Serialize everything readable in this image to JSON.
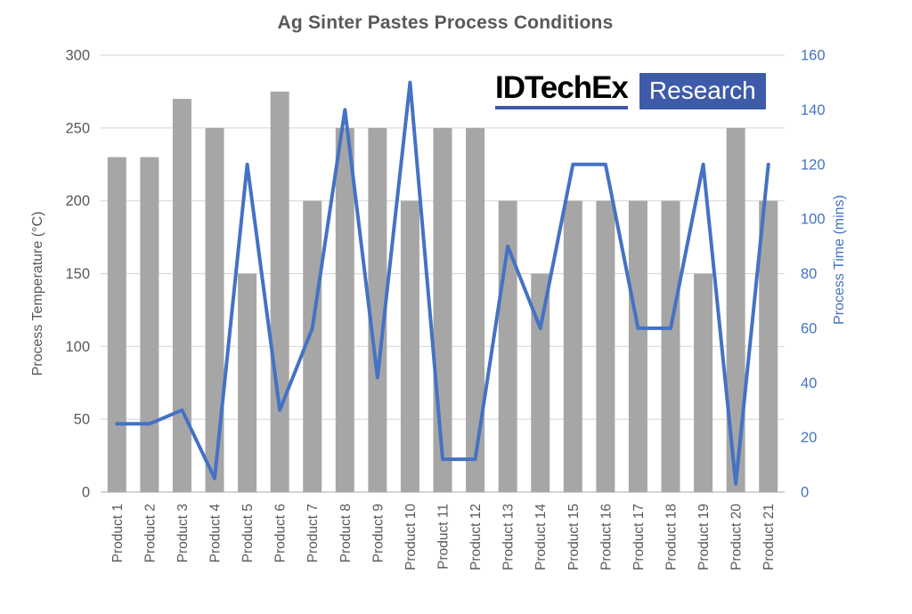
{
  "title": "Ag Sinter Pastes Process Conditions",
  "logo": {
    "brand": "IDTechEx",
    "suffix": "Research",
    "accent_color": "#3d5ba9"
  },
  "colors": {
    "bar": "#a6a6a6",
    "line": "#4472c4",
    "grid": "#d9d9d9",
    "baseline": "#c6c6c6",
    "axis_text": "#595959",
    "right_axis_text": "#4472c4",
    "title_text": "#595959"
  },
  "chart_data": {
    "type": "combo-bar-line",
    "title": "Ag Sinter Pastes Process Conditions",
    "categories": [
      "Product 1",
      "Product 2",
      "Product 3",
      "Product 4",
      "Product 5",
      "Product 6",
      "Product 7",
      "Product 8",
      "Product 9",
      "Product 10",
      "Product 11",
      "Product 12",
      "Product 13",
      "Product 14",
      "Product 15",
      "Product 16",
      "Product 17",
      "Product 18",
      "Product 19",
      "Product 20",
      "Product 21"
    ],
    "series": [
      {
        "name": "Process Temperature (°C)",
        "type": "bar",
        "axis": "left",
        "values": [
          230,
          230,
          270,
          250,
          150,
          275,
          200,
          250,
          250,
          200,
          250,
          250,
          200,
          150,
          200,
          200,
          200,
          200,
          150,
          250,
          200
        ]
      },
      {
        "name": "Process Time (mins)",
        "type": "line",
        "axis": "right",
        "values": [
          25,
          25,
          30,
          5,
          120,
          30,
          60,
          140,
          42,
          150,
          12,
          12,
          90,
          60,
          120,
          120,
          60,
          60,
          120,
          3,
          120
        ]
      }
    ],
    "left_axis": {
      "label": "Process Temperature (°C)",
      "min": 0,
      "max": 300,
      "step": 50,
      "ticks": [
        0,
        50,
        100,
        150,
        200,
        250,
        300
      ]
    },
    "right_axis": {
      "label": "Process Time (mins)",
      "min": 0,
      "max": 160,
      "step": 20,
      "ticks": [
        0,
        20,
        40,
        60,
        80,
        100,
        120,
        140,
        160
      ]
    },
    "grid": true,
    "legend": "none"
  }
}
